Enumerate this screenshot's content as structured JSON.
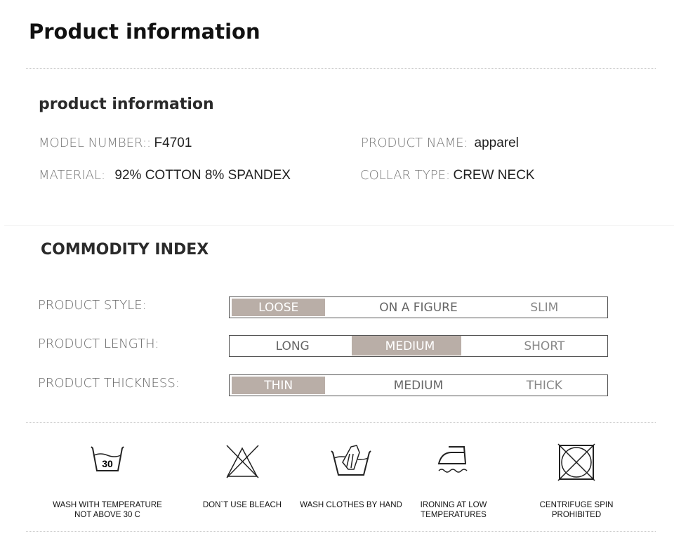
{
  "title": "Product information",
  "info": {
    "heading": "product information",
    "fields": [
      {
        "label": "MODEL NUMBER::",
        "value": "F4701"
      },
      {
        "label": "PRODUCT NAME:",
        "value": "apparel"
      },
      {
        "label": "MATERIAL:",
        "value": "92% COTTON 8% SPANDEX"
      },
      {
        "label": "COLLAR TYPE:",
        "value": "CREW NECK"
      }
    ]
  },
  "index": {
    "heading": "COMMODITY INDEX",
    "highlight_color": "#b9aea7",
    "rows": [
      {
        "label": "PRODUCT STYLE:",
        "options": [
          "LOOSE",
          "ON A  FIGURE",
          "SLIM"
        ],
        "selected": "LOOSE"
      },
      {
        "label": "PRODUCT LENGTH:",
        "options": [
          "LONG",
          "MEDIUM",
          "SHORT"
        ],
        "selected": "MEDIUM"
      },
      {
        "label": "PRODUCT THICKNESS:",
        "options": [
          "THIN",
          "MEDIUM",
          "THICK"
        ],
        "selected": "THIN"
      }
    ]
  },
  "care": [
    {
      "icon": "wash-30-icon",
      "number": "30",
      "text": "WASH WITH TEMPERATURE NOT ABOVE 30 C"
    },
    {
      "icon": "no-bleach-icon",
      "text": "DON`T USE BLEACH"
    },
    {
      "icon": "hand-wash-icon",
      "text": "WASH CLOTHES BY HAND"
    },
    {
      "icon": "iron-low-icon",
      "text": "IRONING AT LOW TEMPERATURES"
    },
    {
      "icon": "no-tumble-dry-icon",
      "text": "CENTRIFUGE SPIN PROHIBITED"
    }
  ]
}
